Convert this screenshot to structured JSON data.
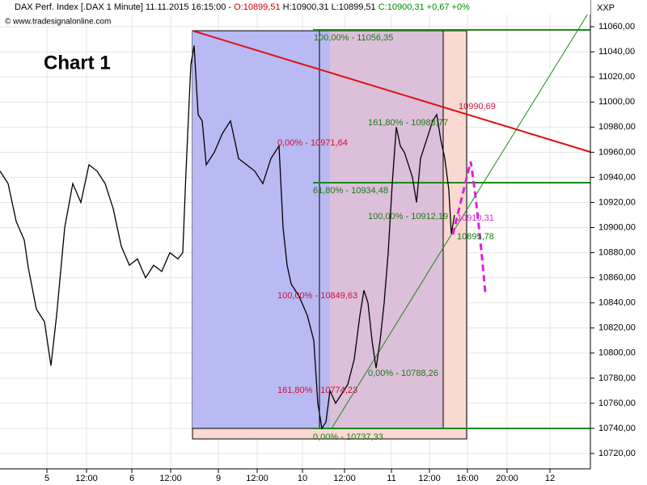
{
  "chart_data": {
    "type": "line",
    "header": {
      "instrument": "DAX Perf. Index [.DAX  1 Minute] 11.11.2015 16:15:00 -",
      "open": "O:10899,51",
      "high_low": "H:10900,31 L:10899,51",
      "close": "C:10900,31 +0,67 +0%"
    },
    "copyright": "© www.tradesignalonline.com",
    "title": "Chart 1",
    "axis_label": "XXP",
    "xlim": [
      0,
      730
    ],
    "ylim": [
      10711,
      11069.7
    ],
    "xticks": [
      {
        "value": 58,
        "label": "5"
      },
      {
        "value": 107,
        "label": "12:00"
      },
      {
        "value": 163,
        "label": "6"
      },
      {
        "value": 211,
        "label": "12:00"
      },
      {
        "value": 270,
        "label": "9"
      },
      {
        "value": 318,
        "label": "12:00"
      },
      {
        "value": 374,
        "label": "10"
      },
      {
        "value": 426,
        "label": "12:00"
      },
      {
        "value": 484,
        "label": "11"
      },
      {
        "value": 531,
        "label": "12:00"
      },
      {
        "value": 578,
        "label": "16:00"
      },
      {
        "value": 627,
        "label": "20:00"
      },
      {
        "value": 680,
        "label": "12"
      }
    ],
    "yticks": [
      {
        "value": 10720,
        "label": "10720,00"
      },
      {
        "value": 10740,
        "label": "10740,00"
      },
      {
        "value": 10760,
        "label": "10760,00"
      },
      {
        "value": 10780,
        "label": "10780,00"
      },
      {
        "value": 10800,
        "label": "10800,00"
      },
      {
        "value": 10820,
        "label": "10820,00"
      },
      {
        "value": 10840,
        "label": "10840,00"
      },
      {
        "value": 10860,
        "label": "10860,00"
      },
      {
        "value": 10880,
        "label": "10880,00"
      },
      {
        "value": 10900,
        "label": "10900,00"
      },
      {
        "value": 10920,
        "label": "10920,00"
      },
      {
        "value": 10940,
        "label": "10940,00"
      },
      {
        "value": 10960,
        "label": "10960,00"
      },
      {
        "value": 10980,
        "label": "10980,00"
      },
      {
        "value": 11000,
        "label": "11000,00"
      },
      {
        "value": 11020,
        "label": "11020,00"
      },
      {
        "value": 11040,
        "label": "11040,00"
      },
      {
        "value": 11060,
        "label": "11060,00"
      }
    ],
    "grid": true,
    "series": [
      {
        "name": "DAX",
        "color": "#000000",
        "x": [
          0,
          10,
          20,
          30,
          35,
          45,
          55,
          63,
          70,
          80,
          90,
          100,
          110,
          120,
          130,
          140,
          150,
          160,
          170,
          180,
          190,
          200,
          210,
          220,
          226,
          230,
          236,
          240,
          245,
          250,
          255,
          265,
          275,
          285,
          295,
          305,
          315,
          325,
          335,
          345,
          350,
          355,
          360,
          370,
          380,
          388,
          393,
          398,
          403,
          408,
          415,
          425,
          430,
          438,
          445,
          450,
          455,
          460,
          465,
          470,
          475,
          480,
          485,
          490,
          495,
          500,
          510,
          515,
          520,
          530,
          535,
          540,
          545,
          550,
          555,
          558,
          562
        ],
        "values": [
          10945,
          10935,
          10905,
          10890,
          10868,
          10835,
          10825,
          10790,
          10830,
          10900,
          10935,
          10920,
          10950,
          10945,
          10935,
          10915,
          10885,
          10870,
          10875,
          10860,
          10870,
          10865,
          10880,
          10875,
          10880,
          10945,
          11030,
          11045,
          10990,
          10985,
          10950,
          10960,
          10975,
          10985,
          10955,
          10950,
          10945,
          10935,
          10955,
          10965,
          10900,
          10870,
          10855,
          10845,
          10830,
          10810,
          10760,
          10740,
          10745,
          10770,
          10760,
          10770,
          10775,
          10795,
          10830,
          10850,
          10840,
          10810,
          10788,
          10810,
          10840,
          10880,
          10935,
          10980,
          10965,
          10960,
          10940,
          10920,
          10955,
          10975,
          10985,
          10990,
          10970,
          10955,
          10930,
          10895,
          10910
        ]
      }
    ],
    "annotations": [
      "100,00% - 11056,35",
      "161,80% - 10988,77",
      "0,00% - 10971,64",
      "61,80% - 10934,48",
      "100,00% - 10912,19",
      "10910,31",
      "10895,78",
      "10990,69",
      "100,00% - 10849,63",
      "0,00% - 10788,26",
      "161,80% - 10774,23",
      "0,00% - 10737,33"
    ]
  }
}
